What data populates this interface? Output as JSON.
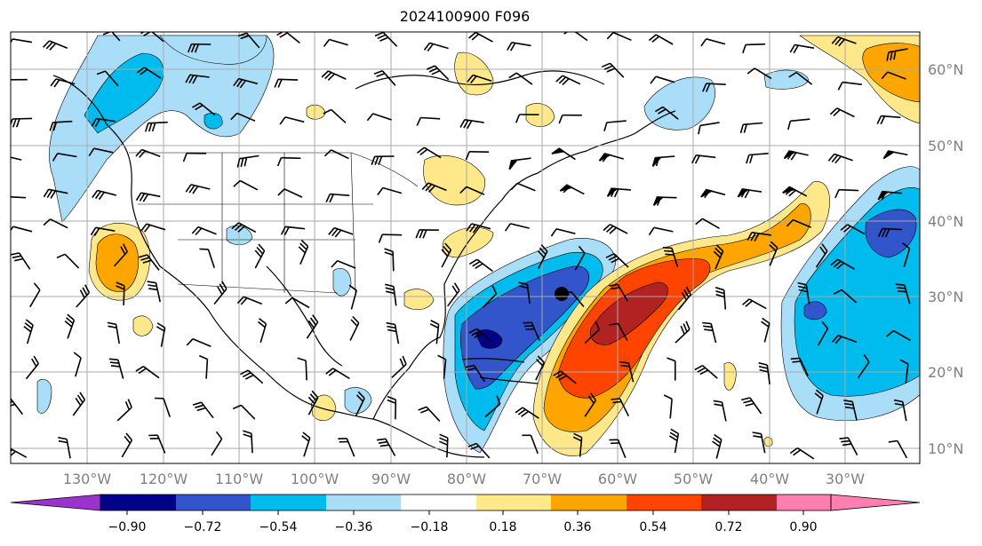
{
  "title": "2024100900 F096",
  "map": {
    "lon_labels": [
      "130°W",
      "120°W",
      "110°W",
      "100°W",
      "90°W",
      "80°W",
      "70°W",
      "60°W",
      "50°W",
      "40°W",
      "30°W"
    ],
    "lat_labels": [
      "60°N",
      "50°N",
      "40°N",
      "30°N",
      "20°N",
      "10°N"
    ],
    "grid": true,
    "projection": "cylindrical",
    "extent_lon": [
      -140,
      -20
    ],
    "extent_lat": [
      8,
      65
    ]
  },
  "colorbar": {
    "tick_labels": [
      "−0.90",
      "−0.72",
      "−0.54",
      "−0.36",
      "−0.18",
      "0.18",
      "0.36",
      "0.54",
      "0.72",
      "0.90"
    ],
    "colors": [
      "#9933cc",
      "#000088",
      "#3355cc",
      "#00bbee",
      "#aaddf8",
      "#ffffff",
      "#ffe88a",
      "#ffa500",
      "#ff4400",
      "#b22222",
      "#ff80b0"
    ],
    "extend": "both"
  },
  "fields": {
    "positive_colors": [
      "#ffe88a",
      "#ffa500",
      "#ff4400",
      "#b22222"
    ],
    "negative_colors": [
      "#aaddf8",
      "#00bbee",
      "#3355cc",
      "#000088"
    ]
  }
}
